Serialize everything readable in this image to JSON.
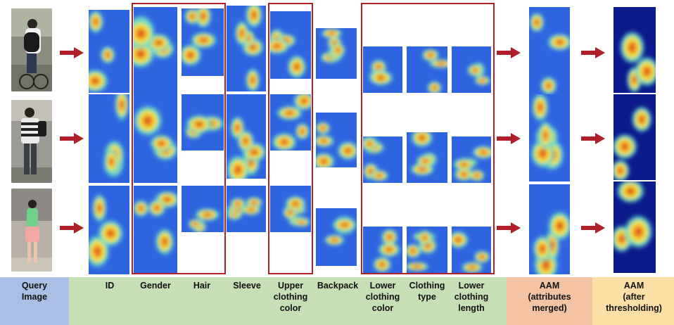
{
  "labels": {
    "query": "Query\nImage",
    "id": "ID",
    "gender": "Gender",
    "hair": "Hair",
    "sleeve": "Sleeve",
    "upper_clothing_color": "Upper\nclothing\ncolor",
    "backpack": "Backpack",
    "lower_clothing_color": "Lower\nclothing\ncolor",
    "clothing_type": "Clothing\ntype",
    "lower_clothing_length": "Lower\nclothing\nlength",
    "aam_merged": "AAM\n(attributes\nmerged)",
    "aam_threshold": "AAM\n(after\nthresholding)"
  },
  "colors": {
    "band_query": "#a9bfe3",
    "band_attributes": "#c7dfb4",
    "band_aam": "#f3c3a4",
    "band_threshold": "#fde0a6",
    "group_box": "#b0202a",
    "arrow": "#b0202a"
  }
}
